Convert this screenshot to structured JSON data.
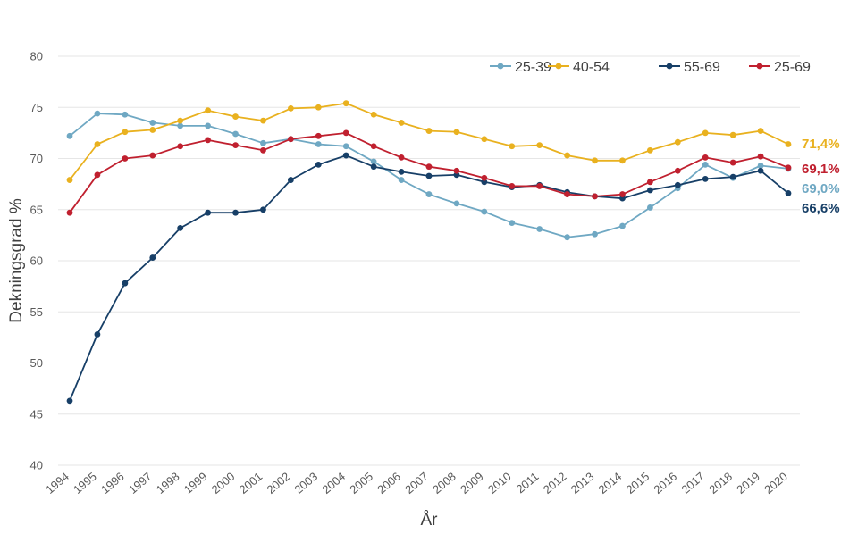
{
  "chart_data": {
    "type": "line",
    "title": "",
    "xlabel": "År",
    "ylabel": "Dekningsgrad %",
    "ylim": [
      40,
      80
    ],
    "yticks": [
      40,
      45,
      50,
      55,
      60,
      65,
      70,
      75,
      80
    ],
    "grid": true,
    "legend_position": "top-right",
    "categories": [
      "1994",
      "1995",
      "1996",
      "1997",
      "1998",
      "1999",
      "2000",
      "2001",
      "2002",
      "2003",
      "2004",
      "2005",
      "2006",
      "2007",
      "2008",
      "2009",
      "2010",
      "2011",
      "2012",
      "2013",
      "2014",
      "2015",
      "2016",
      "2017",
      "2018",
      "2019",
      "2020"
    ],
    "series": [
      {
        "name": "25-39",
        "color": "#6fa8c3",
        "end_label": "69,0%",
        "values": [
          72.2,
          74.4,
          74.3,
          73.5,
          73.2,
          73.2,
          72.4,
          71.5,
          71.9,
          71.4,
          71.2,
          69.7,
          67.9,
          66.5,
          65.6,
          64.8,
          63.7,
          63.1,
          62.3,
          62.6,
          63.4,
          65.2,
          67.1,
          69.4,
          68.1,
          69.3,
          69.0
        ]
      },
      {
        "name": "40-54",
        "color": "#e9b11f",
        "end_label": "71,4%",
        "values": [
          67.9,
          71.4,
          72.6,
          72.8,
          73.7,
          74.7,
          74.1,
          73.7,
          74.9,
          75.0,
          75.4,
          74.3,
          73.5,
          72.7,
          72.6,
          71.9,
          71.2,
          71.3,
          70.3,
          69.8,
          69.8,
          70.8,
          71.6,
          72.5,
          72.3,
          72.7,
          71.4
        ]
      },
      {
        "name": "55-69",
        "color": "#173f67",
        "end_label": "66,6%",
        "values": [
          46.3,
          52.8,
          57.8,
          60.3,
          63.2,
          64.7,
          64.7,
          65.0,
          67.9,
          69.4,
          70.3,
          69.2,
          68.7,
          68.3,
          68.4,
          67.7,
          67.2,
          67.4,
          66.7,
          66.3,
          66.1,
          66.9,
          67.4,
          68.0,
          68.2,
          68.8,
          66.6
        ]
      },
      {
        "name": "25-69",
        "color": "#c0202f",
        "end_label": "69,1%",
        "values": [
          64.7,
          68.4,
          70.0,
          70.3,
          71.2,
          71.8,
          71.3,
          70.8,
          71.9,
          72.2,
          72.5,
          71.2,
          70.1,
          69.2,
          68.8,
          68.1,
          67.3,
          67.3,
          66.5,
          66.3,
          66.5,
          67.7,
          68.8,
          70.1,
          69.6,
          70.2,
          69.1
        ]
      }
    ]
  }
}
